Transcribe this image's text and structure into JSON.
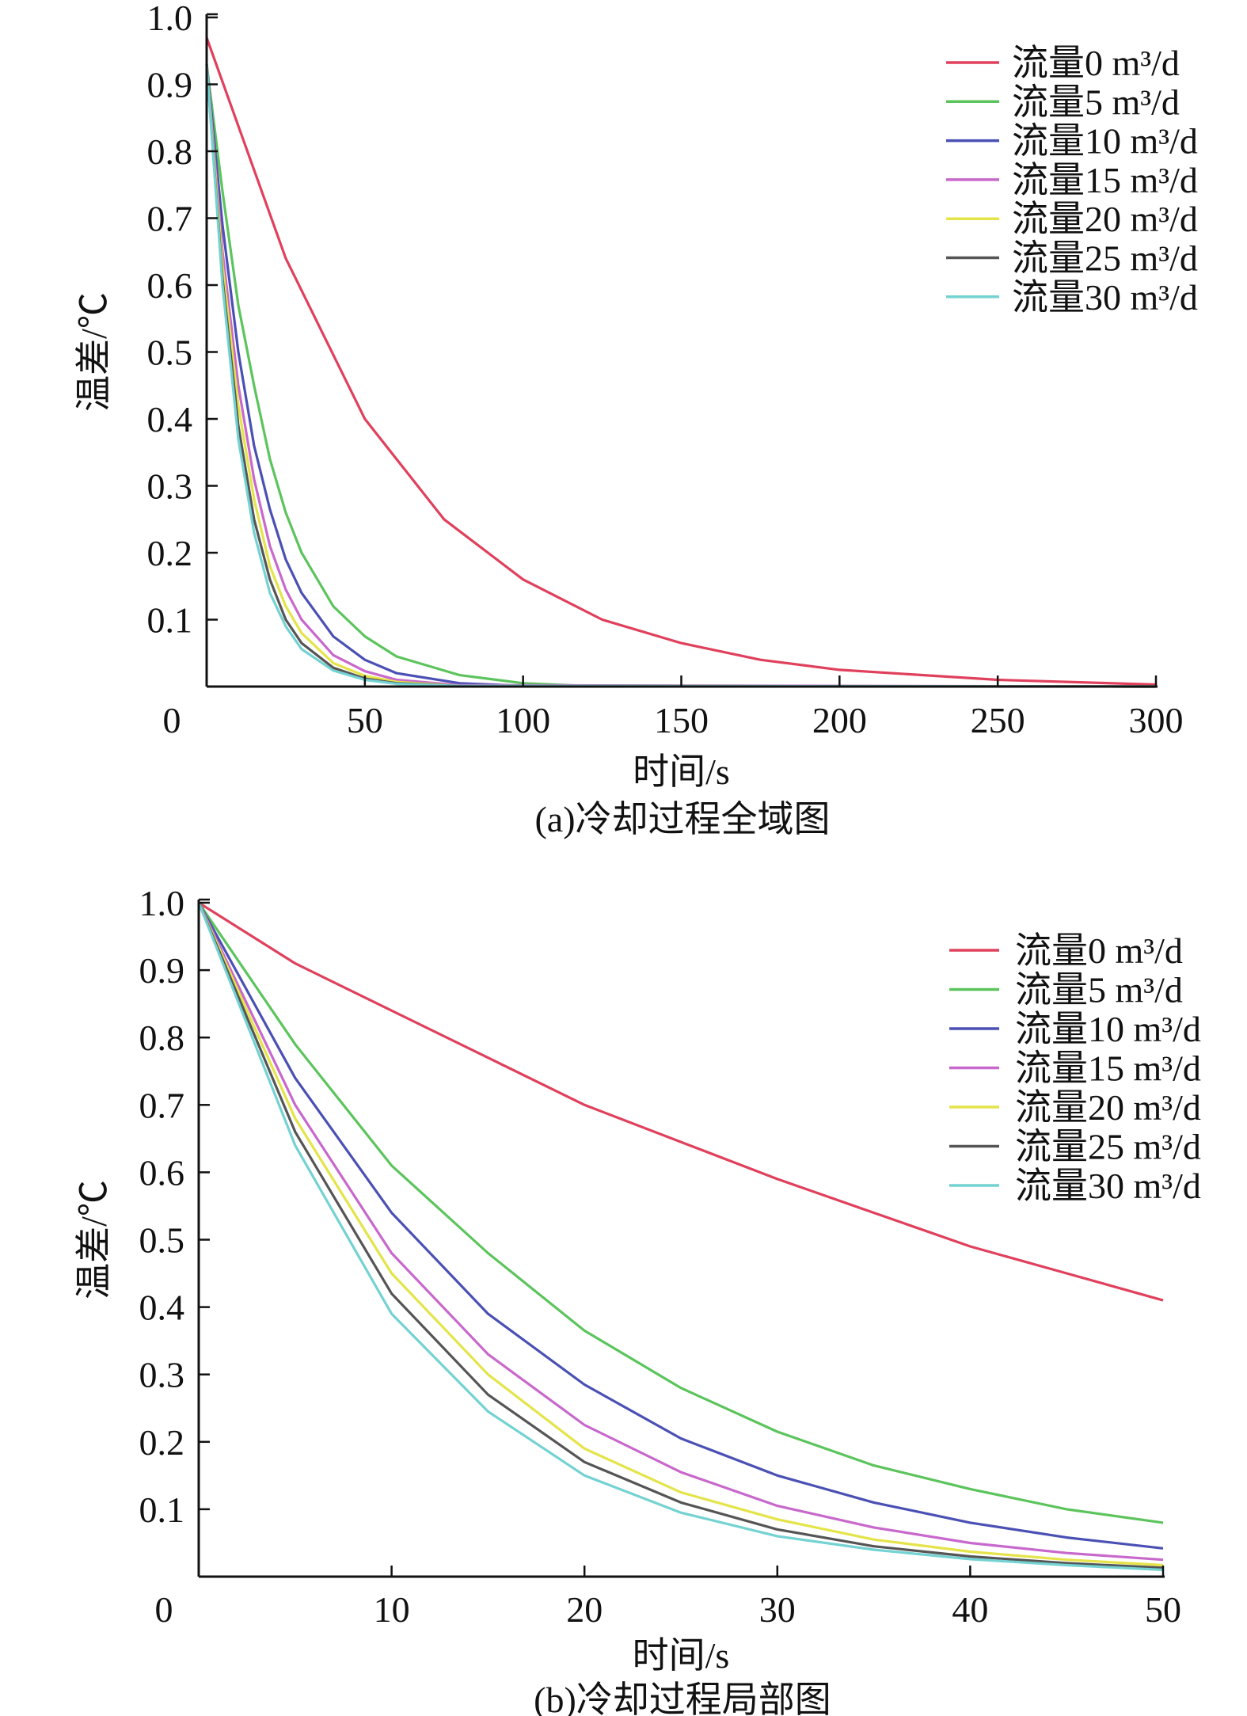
{
  "chart_data": [
    {
      "type": "line",
      "title": "",
      "caption": "(a)冷却过程全域图",
      "xlabel": "时间/s",
      "ylabel": "温差/℃",
      "xlim": [
        0,
        300
      ],
      "ylim": [
        0,
        1.0
      ],
      "xticks": [
        "0",
        "50",
        "100",
        "150",
        "200",
        "250",
        "300"
      ],
      "xtick_values": [
        0,
        50,
        100,
        150,
        200,
        250,
        300
      ],
      "yticks": [
        "0.1",
        "0.2",
        "0.3",
        "0.4",
        "0.5",
        "0.6",
        "0.7",
        "0.8",
        "0.9",
        "1.0"
      ],
      "ytick_values": [
        0.1,
        0.2,
        0.3,
        0.4,
        0.5,
        0.6,
        0.7,
        0.8,
        0.9,
        1.0
      ],
      "grid": false,
      "legend_position": "top-right",
      "series": [
        {
          "name": "流量0 m³/d",
          "color": "#e0405c",
          "x": [
            0,
            25,
            50,
            75,
            100,
            125,
            150,
            175,
            200,
            250,
            300
          ],
          "values": [
            0.97,
            0.64,
            0.4,
            0.25,
            0.16,
            0.1,
            0.065,
            0.04,
            0.025,
            0.01,
            0.003
          ]
        },
        {
          "name": "流量5 m³/d",
          "color": "#5cc45c",
          "x": [
            0,
            5,
            10,
            15,
            20,
            25,
            30,
            40,
            50,
            60,
            80,
            100,
            120,
            300
          ],
          "values": [
            0.93,
            0.74,
            0.57,
            0.45,
            0.34,
            0.26,
            0.2,
            0.12,
            0.075,
            0.045,
            0.017,
            0.005,
            0.001,
            0
          ]
        },
        {
          "name": "流量10 m³/d",
          "color": "#4a50b4",
          "x": [
            0,
            5,
            10,
            15,
            20,
            25,
            30,
            40,
            50,
            60,
            80,
            100,
            300
          ],
          "values": [
            0.93,
            0.69,
            0.5,
            0.36,
            0.265,
            0.19,
            0.14,
            0.075,
            0.04,
            0.02,
            0.005,
            0.001,
            0
          ]
        },
        {
          "name": "流量15 m³/d",
          "color": "#c868cc",
          "x": [
            0,
            5,
            10,
            15,
            20,
            25,
            30,
            40,
            50,
            60,
            80,
            300
          ],
          "values": [
            0.93,
            0.65,
            0.45,
            0.31,
            0.21,
            0.145,
            0.1,
            0.047,
            0.023,
            0.01,
            0.002,
            0
          ]
        },
        {
          "name": "流量20 m³/d",
          "color": "#e4e44a",
          "x": [
            0,
            5,
            10,
            15,
            20,
            25,
            30,
            40,
            50,
            60,
            80,
            300
          ],
          "values": [
            0.93,
            0.63,
            0.42,
            0.28,
            0.18,
            0.12,
            0.08,
            0.035,
            0.016,
            0.007,
            0.001,
            0
          ]
        },
        {
          "name": "流量25 m³/d",
          "color": "#555555",
          "x": [
            0,
            5,
            10,
            15,
            20,
            25,
            30,
            40,
            50,
            60,
            80,
            300
          ],
          "values": [
            0.93,
            0.61,
            0.39,
            0.25,
            0.16,
            0.1,
            0.065,
            0.028,
            0.012,
            0.005,
            0.001,
            0
          ]
        },
        {
          "name": "流量30 m³/d",
          "color": "#74d2d2",
          "x": [
            0,
            5,
            10,
            15,
            20,
            25,
            30,
            40,
            50,
            60,
            80,
            300
          ],
          "values": [
            0.93,
            0.6,
            0.37,
            0.23,
            0.14,
            0.09,
            0.056,
            0.024,
            0.01,
            0.004,
            0.001,
            0
          ]
        }
      ]
    },
    {
      "type": "line",
      "title": "",
      "caption": "(b)冷却过程局部图",
      "xlabel": "时间/s",
      "ylabel": "温差/℃",
      "xlim": [
        0,
        50
      ],
      "ylim": [
        0,
        1.0
      ],
      "xticks": [
        "0",
        "10",
        "20",
        "30",
        "40",
        "50"
      ],
      "xtick_values": [
        0,
        10,
        20,
        30,
        40,
        50
      ],
      "yticks": [
        "0.1",
        "0.2",
        "0.3",
        "0.4",
        "0.5",
        "0.6",
        "0.7",
        "0.8",
        "0.9",
        "1.0"
      ],
      "ytick_values": [
        0.1,
        0.2,
        0.3,
        0.4,
        0.5,
        0.6,
        0.7,
        0.8,
        0.9,
        1.0
      ],
      "grid": false,
      "legend_position": "top-right",
      "series": [
        {
          "name": "流量0 m³/d",
          "color": "#e0405c",
          "x": [
            0,
            5,
            10,
            15,
            20,
            25,
            30,
            35,
            40,
            45,
            50
          ],
          "values": [
            1.0,
            0.91,
            0.84,
            0.77,
            0.7,
            0.645,
            0.59,
            0.54,
            0.49,
            0.45,
            0.41
          ]
        },
        {
          "name": "流量5 m³/d",
          "color": "#5cc45c",
          "x": [
            0,
            5,
            10,
            15,
            20,
            25,
            30,
            35,
            40,
            45,
            50
          ],
          "values": [
            1.0,
            0.79,
            0.61,
            0.48,
            0.365,
            0.28,
            0.215,
            0.165,
            0.13,
            0.1,
            0.08
          ]
        },
        {
          "name": "流量10 m³/d",
          "color": "#4a50b4",
          "x": [
            0,
            5,
            10,
            15,
            20,
            25,
            30,
            35,
            40,
            45,
            50
          ],
          "values": [
            1.0,
            0.74,
            0.54,
            0.39,
            0.285,
            0.205,
            0.15,
            0.11,
            0.08,
            0.058,
            0.042
          ]
        },
        {
          "name": "流量15 m³/d",
          "color": "#c868cc",
          "x": [
            0,
            5,
            10,
            15,
            20,
            25,
            30,
            35,
            40,
            45,
            50
          ],
          "values": [
            1.0,
            0.7,
            0.48,
            0.33,
            0.225,
            0.155,
            0.105,
            0.073,
            0.05,
            0.035,
            0.025
          ]
        },
        {
          "name": "流量20 m³/d",
          "color": "#e4e44a",
          "x": [
            0,
            5,
            10,
            15,
            20,
            25,
            30,
            35,
            40,
            45,
            50
          ],
          "values": [
            1.0,
            0.68,
            0.45,
            0.3,
            0.19,
            0.125,
            0.085,
            0.055,
            0.037,
            0.025,
            0.017
          ]
        },
        {
          "name": "流量25 m³/d",
          "color": "#555555",
          "x": [
            0,
            5,
            10,
            15,
            20,
            25,
            30,
            35,
            40,
            45,
            50
          ],
          "values": [
            1.0,
            0.66,
            0.42,
            0.27,
            0.17,
            0.11,
            0.07,
            0.045,
            0.03,
            0.02,
            0.013
          ]
        },
        {
          "name": "流量30 m³/d",
          "color": "#74d2d2",
          "x": [
            0,
            5,
            10,
            15,
            20,
            25,
            30,
            35,
            40,
            45,
            50
          ],
          "values": [
            1.0,
            0.64,
            0.39,
            0.245,
            0.15,
            0.095,
            0.06,
            0.04,
            0.026,
            0.017,
            0.01
          ]
        }
      ]
    }
  ]
}
